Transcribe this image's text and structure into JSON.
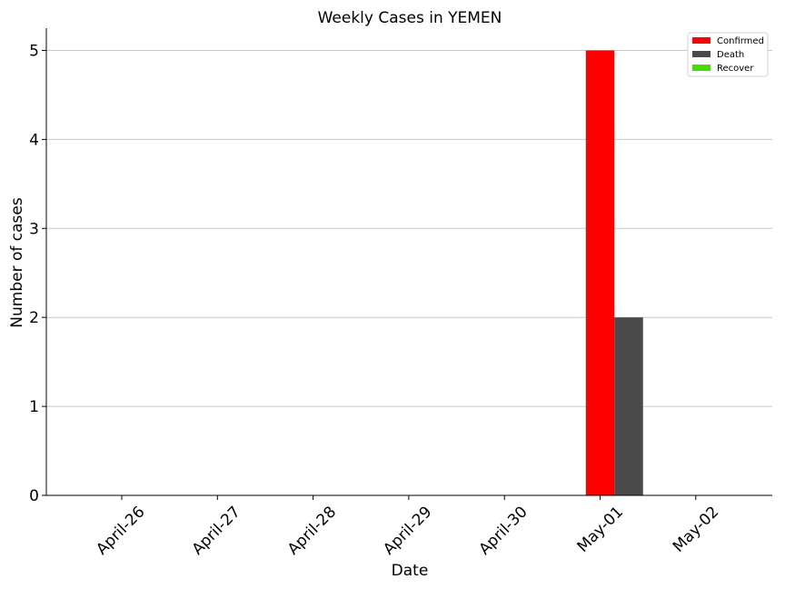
{
  "chart_data": {
    "type": "bar",
    "title": "Weekly Cases in YEMEN",
    "xlabel": "Date",
    "ylabel": "Number of cases",
    "categories": [
      "April-26",
      "April-27",
      "April-28",
      "April-29",
      "April-30",
      "May-01",
      "May-02"
    ],
    "series": [
      {
        "name": "Confirmed",
        "color": "#ff0000",
        "values": [
          0,
          0,
          0,
          0,
          0,
          5,
          0
        ]
      },
      {
        "name": "Death",
        "color": "#4a4a4a",
        "values": [
          0,
          0,
          0,
          0,
          0,
          2,
          0
        ]
      },
      {
        "name": "Recover",
        "color": "#44dd00",
        "values": [
          0,
          0,
          0,
          0,
          0,
          0,
          0
        ]
      }
    ],
    "ylim": [
      0,
      5.25
    ],
    "yticks": [
      "0",
      "1",
      "2",
      "3",
      "4",
      "5"
    ],
    "grid": "y",
    "legend_position": "top-right"
  }
}
